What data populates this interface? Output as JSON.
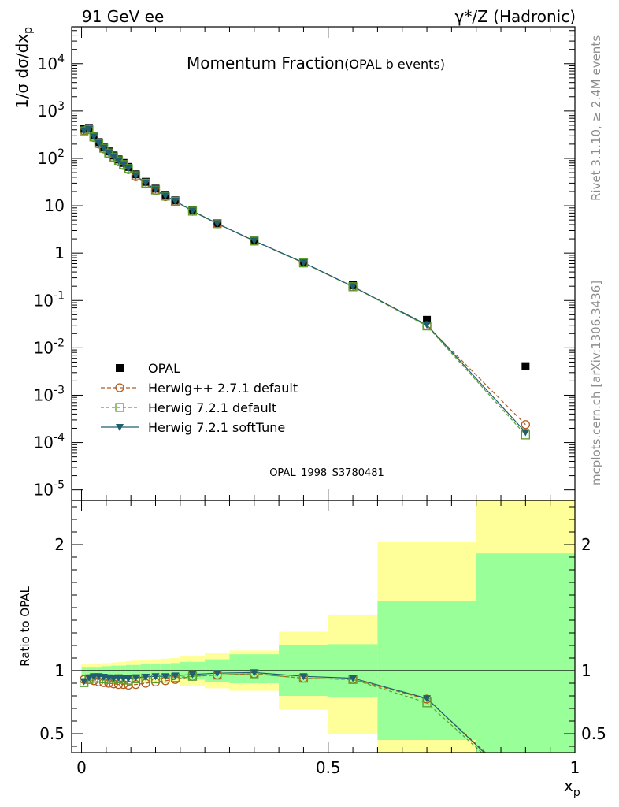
{
  "header": {
    "left": "91 GeV ee",
    "right": "γ*/Z (Hadronic)"
  },
  "side_text": {
    "rivet": "Rivet 3.1.10, ≥ 2.4M events",
    "mcplots": "mcplots.cern.ch [arXiv:1306.3436]"
  },
  "chart_data": [
    {
      "type": "scatter",
      "title": "Momentum Fraction",
      "subtitle": "(OPAL b events)",
      "watermark": "OPAL_1998_S3780481",
      "ylabel": "1/σ dσ/dx_p",
      "yscale": "log",
      "ylim": [
        6e-06,
        60000
      ],
      "xlim": [
        -0.02,
        1.0
      ],
      "y_tick_labels": [
        "10^-5",
        "10^-4",
        "10^-3",
        "10^-2",
        "10^-1",
        "1",
        "10",
        "10^2",
        "10^3",
        "10^4"
      ],
      "legend_position": "bottom-left",
      "x": [
        0.005,
        0.015,
        0.025,
        0.035,
        0.045,
        0.055,
        0.065,
        0.075,
        0.085,
        0.095,
        0.11,
        0.13,
        0.15,
        0.17,
        0.19,
        0.225,
        0.275,
        0.35,
        0.45,
        0.55,
        0.7,
        0.9
      ],
      "series": [
        {
          "name": "OPAL",
          "style": "data",
          "color": "#000000",
          "values": [
            420,
            440,
            300,
            220,
            175,
            140,
            115,
            95,
            80,
            66,
            46,
            32,
            23,
            17,
            13,
            8.0,
            4.3,
            1.85,
            0.66,
            0.21,
            0.039,
            0.0041
          ]
        },
        {
          "name": "Herwig++ 2.7.1 default",
          "style": "circle",
          "color": "#b25a1e",
          "values": [
            385,
            405,
            275,
            200,
            158,
            125,
            102,
            85,
            71,
            58,
            41,
            29,
            21,
            15.6,
            12.3,
            7.65,
            4.15,
            1.8,
            0.62,
            0.195,
            0.0295,
            0.00024
          ]
        },
        {
          "name": "Herwig 7.2.1 default",
          "style": "square",
          "color": "#5aa02c",
          "values": [
            380,
            410,
            283,
            207,
            164,
            130,
            107,
            89,
            74,
            61,
            43,
            30,
            21.5,
            16,
            12.4,
            7.7,
            4.2,
            1.8,
            0.62,
            0.195,
            0.029,
            0.000145
          ]
        },
        {
          "name": "Herwig 7.2.1 softTune",
          "style": "triangle",
          "color": "#1f5f6f",
          "values": [
            385,
            415,
            287,
            210,
            166,
            132,
            108,
            90,
            75,
            62,
            43.5,
            30.5,
            22,
            16.2,
            12.6,
            7.8,
            4.22,
            1.82,
            0.63,
            0.197,
            0.0305,
            0.000165
          ]
        }
      ]
    },
    {
      "type": "line",
      "ylabel": "Ratio to OPAL",
      "xlabel": "x_p",
      "xlim": [
        -0.02,
        1.0
      ],
      "ylim": [
        0.35,
        2.35
      ],
      "x_ticks": [
        0,
        0.5,
        1
      ],
      "x_tick_labels": [
        "0",
        "0.5",
        "1"
      ],
      "y_ticks": [
        0.5,
        1,
        2
      ],
      "y_tick_labels": [
        "0.5",
        "1",
        "2"
      ],
      "bins": [
        0.0,
        0.01,
        0.02,
        0.03,
        0.04,
        0.05,
        0.06,
        0.07,
        0.08,
        0.09,
        0.1,
        0.12,
        0.14,
        0.16,
        0.18,
        0.2,
        0.25,
        0.3,
        0.4,
        0.5,
        0.6,
        0.8,
        1.0
      ],
      "band_green_lo": [
        0.97,
        0.97,
        0.97,
        0.97,
        0.965,
        0.965,
        0.96,
        0.96,
        0.96,
        0.955,
        0.955,
        0.95,
        0.95,
        0.945,
        0.94,
        0.93,
        0.91,
        0.9,
        0.8,
        0.79,
        0.45,
        0.35
      ],
      "band_green_hi": [
        1.03,
        1.03,
        1.03,
        1.03,
        1.035,
        1.035,
        1.04,
        1.04,
        1.04,
        1.045,
        1.045,
        1.05,
        1.05,
        1.055,
        1.06,
        1.07,
        1.09,
        1.13,
        1.2,
        1.21,
        1.55,
        1.93
      ],
      "band_yellow_lo": [
        0.95,
        0.95,
        0.95,
        0.945,
        0.94,
        0.94,
        0.935,
        0.93,
        0.93,
        0.925,
        0.92,
        0.915,
        0.91,
        0.905,
        0.9,
        0.88,
        0.86,
        0.84,
        0.69,
        0.5,
        0.35,
        0.35
      ],
      "band_yellow_hi": [
        1.05,
        1.05,
        1.05,
        1.055,
        1.06,
        1.06,
        1.065,
        1.07,
        1.07,
        1.075,
        1.08,
        1.085,
        1.09,
        1.095,
        1.1,
        1.12,
        1.14,
        1.16,
        1.31,
        1.44,
        2.02,
        2.35
      ],
      "x": [
        0.005,
        0.015,
        0.025,
        0.035,
        0.045,
        0.055,
        0.065,
        0.075,
        0.085,
        0.095,
        0.11,
        0.13,
        0.15,
        0.17,
        0.19,
        0.225,
        0.275,
        0.35,
        0.45,
        0.55,
        0.7,
        0.9
      ],
      "series": [
        {
          "name": "Herwig++ 2.7.1 default",
          "style": "circle",
          "color": "#b25a1e",
          "values": [
            0.93,
            0.93,
            0.92,
            0.91,
            0.905,
            0.9,
            0.895,
            0.89,
            0.89,
            0.885,
            0.89,
            0.9,
            0.91,
            0.92,
            0.93,
            0.955,
            0.965,
            0.975,
            0.94,
            0.93,
            0.775,
            0.06
          ]
        },
        {
          "name": "Herwig 7.2.1 default",
          "style": "square",
          "color": "#5aa02c",
          "values": [
            0.905,
            0.93,
            0.94,
            0.94,
            0.935,
            0.93,
            0.93,
            0.935,
            0.93,
            0.925,
            0.935,
            0.94,
            0.935,
            0.94,
            0.945,
            0.955,
            0.965,
            0.975,
            0.94,
            0.93,
            0.745,
            0.035
          ]
        },
        {
          "name": "Herwig 7.2.1 softTune",
          "style": "triangle",
          "color": "#1f5f6f",
          "values": [
            0.915,
            0.945,
            0.955,
            0.955,
            0.95,
            0.945,
            0.94,
            0.945,
            0.94,
            0.94,
            0.945,
            0.95,
            0.955,
            0.955,
            0.96,
            0.97,
            0.98,
            0.985,
            0.955,
            0.94,
            0.78,
            0.04
          ]
        }
      ]
    }
  ]
}
